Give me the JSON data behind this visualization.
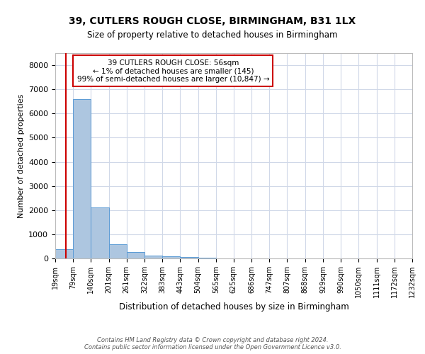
{
  "title": "39, CUTLERS ROUGH CLOSE, BIRMINGHAM, B31 1LX",
  "subtitle": "Size of property relative to detached houses in Birmingham",
  "xlabel": "Distribution of detached houses by size in Birmingham",
  "ylabel": "Number of detached properties",
  "footer_line1": "Contains HM Land Registry data © Crown copyright and database right 2024.",
  "footer_line2": "Contains public sector information licensed under the Open Government Licence v3.0.",
  "annotation_line1": "39 CUTLERS ROUGH CLOSE: 56sqm",
  "annotation_line2": "← 1% of detached houses are smaller (145)",
  "annotation_line3": "99% of semi-detached houses are larger (10,847) →",
  "property_size_sqm": 56,
  "bar_color": "#adc6e0",
  "bar_edge_color": "#5b9bd5",
  "red_line_color": "#cc0000",
  "annotation_box_edge_color": "#cc0000",
  "annotation_box_face_color": "#ffffff",
  "grid_color": "#d0d8e8",
  "background_color": "#ffffff",
  "bins": [
    19,
    79,
    140,
    201,
    261,
    322,
    383,
    443,
    504,
    565,
    625,
    686,
    747,
    807,
    868,
    929,
    990,
    1050,
    1111,
    1172,
    1232
  ],
  "bin_labels": [
    "19sqm",
    "79sqm",
    "140sqm",
    "201sqm",
    "261sqm",
    "322sqm",
    "383sqm",
    "443sqm",
    "504sqm",
    "565sqm",
    "625sqm",
    "686sqm",
    "747sqm",
    "807sqm",
    "868sqm",
    "929sqm",
    "990sqm",
    "1050sqm",
    "1111sqm",
    "1172sqm",
    "1232sqm"
  ],
  "bar_heights": [
    390,
    6600,
    2100,
    600,
    270,
    130,
    75,
    50,
    18,
    8,
    4,
    0,
    0,
    0,
    0,
    0,
    0,
    0,
    0,
    0
  ],
  "ylim": [
    0,
    8500
  ],
  "yticks": [
    0,
    1000,
    2000,
    3000,
    4000,
    5000,
    6000,
    7000,
    8000
  ]
}
